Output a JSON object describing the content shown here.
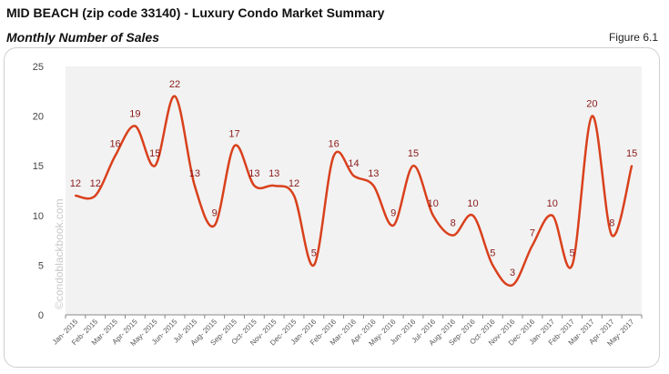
{
  "header": {
    "title": "MID BEACH (zip code 33140) - Luxury Condo Market Summary",
    "subtitle": "Monthly Number of Sales",
    "figure": "Figure 6.1"
  },
  "watermark": "©condoblackbook.com",
  "chart_data": {
    "type": "line",
    "title": "Monthly Number of Sales",
    "xlabel": "",
    "ylabel": "",
    "ylim": [
      0,
      25
    ],
    "yticks": [
      0,
      5,
      10,
      15,
      20,
      25
    ],
    "grid": false,
    "line_color": "#d9401c",
    "label_color": "#8b1a1a",
    "plot_background": "#f2f2f2",
    "categories": [
      "Jan- 2015",
      "Feb- 2015",
      "Mar- 2015",
      "Apr- 2015",
      "May- 2015",
      "Jun- 2015",
      "Jul- 2015",
      "Aug- 2015",
      "Sep- 2015",
      "Oct- 2015",
      "Nov- 2015",
      "Dec- 2015",
      "Jan- 2016",
      "Feb- 2016",
      "Mar- 2016",
      "Apr- 2016",
      "May- 2016",
      "Jun- 2016",
      "Jul- 2016",
      "Aug- 2016",
      "Sep- 2016",
      "Oct- 2016",
      "Nov- 2016",
      "Dec- 2016",
      "Jan- 2017",
      "Feb- 2017",
      "Mar- 2017",
      "Apr- 2017",
      "May- 2017"
    ],
    "values": [
      12,
      12,
      16,
      19,
      15,
      22,
      13,
      9,
      17,
      13,
      13,
      12,
      5,
      16,
      14,
      13,
      9,
      15,
      10,
      8,
      10,
      5,
      3,
      7,
      10,
      5,
      20,
      8,
      15
    ]
  }
}
